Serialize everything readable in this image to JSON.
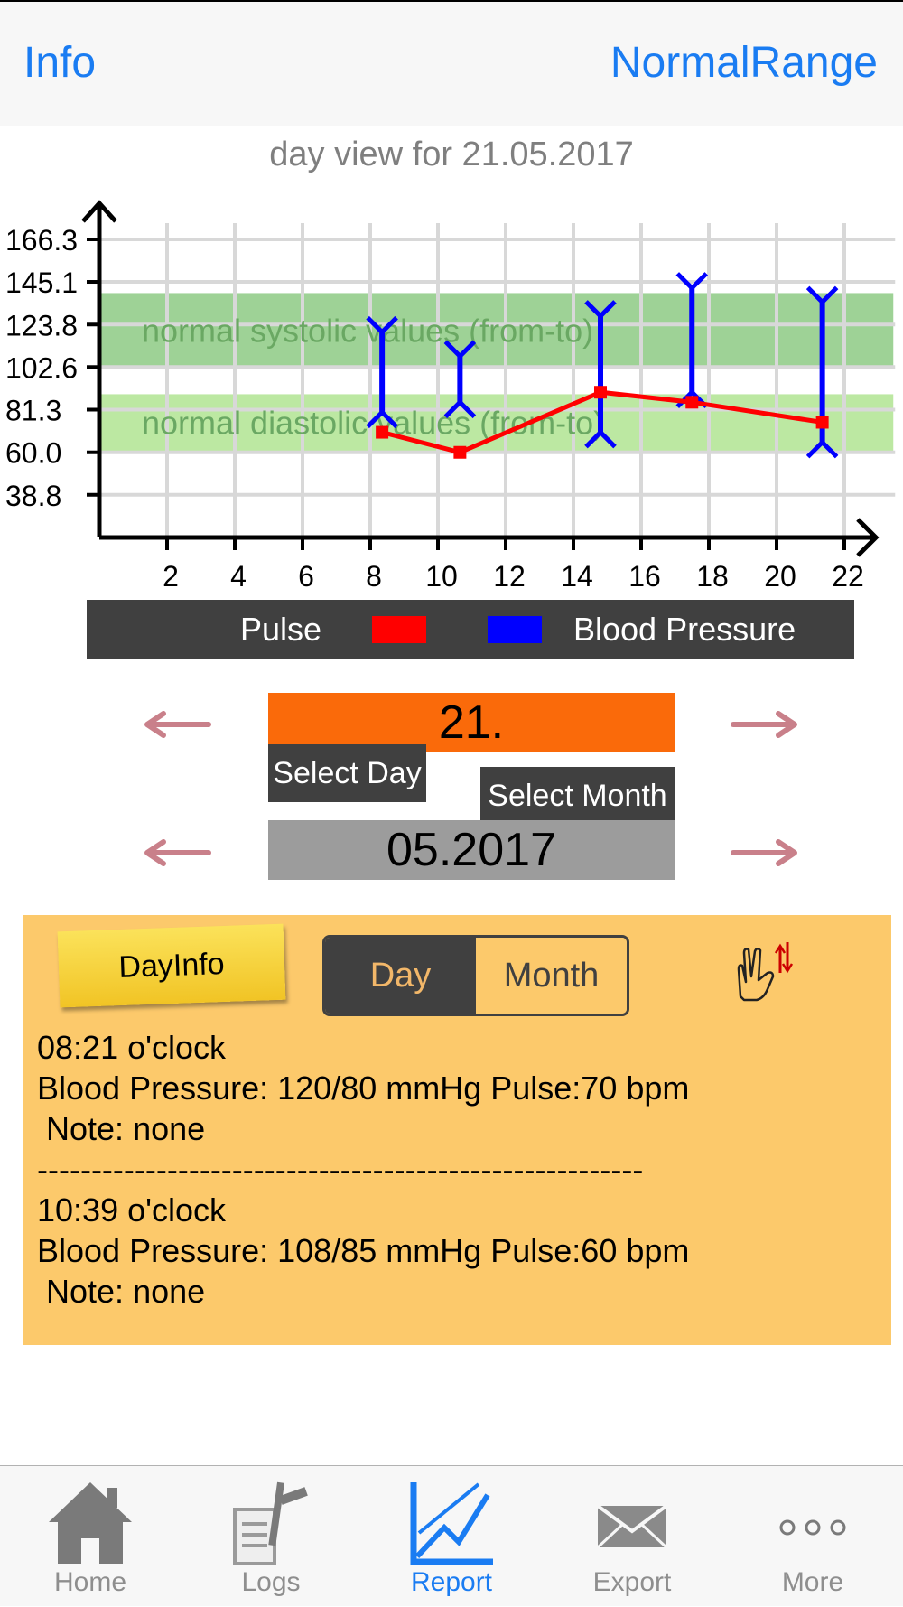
{
  "nav": {
    "left": "Info",
    "right": "NormalRange"
  },
  "chart_data": {
    "type": "line",
    "title": "day view for 21.05.2017",
    "x_ticks": [
      2,
      4,
      6,
      8,
      10,
      12,
      14,
      16,
      18,
      20,
      22
    ],
    "y_ticks": [
      "166.3",
      "145.1",
      "123.8",
      "102.6",
      "81.3",
      "60.0",
      "38.8"
    ],
    "y_tick_values": [
      166.3,
      145.1,
      123.8,
      102.6,
      81.3,
      60.0,
      38.8
    ],
    "xlim": [
      0,
      23.5
    ],
    "ylim": [
      17.5,
      176
    ],
    "grid": true,
    "bands": [
      {
        "label": "normal systolic values (from-to)",
        "from": 101.5,
        "to": 139.5,
        "color": "#9ed296"
      },
      {
        "label": "normal diastolic values (from-to)",
        "from": 60,
        "to": 89,
        "color": "#bce8a2"
      }
    ],
    "series": [
      {
        "name": "Pulse",
        "color": "#ff0000",
        "kind": "line",
        "points": [
          [
            8.35,
            70
          ],
          [
            10.65,
            60
          ],
          [
            14.8,
            90
          ],
          [
            17.5,
            85
          ],
          [
            21.35,
            75
          ]
        ]
      },
      {
        "name": "Blood Pressure",
        "color": "#0000ff",
        "kind": "range",
        "points": [
          [
            8.35,
            120,
            80
          ],
          [
            10.65,
            108,
            85
          ],
          [
            14.8,
            128,
            70
          ],
          [
            17.5,
            142,
            90
          ],
          [
            21.35,
            135,
            65
          ]
        ]
      }
    ]
  },
  "legend": {
    "pulse": "Pulse",
    "bp": "Blood Pressure",
    "pulse_color": "#ff0000",
    "bp_color": "#0000ff"
  },
  "selector": {
    "day_value": "21.",
    "month_value": "05.2017",
    "select_day": "Select Day",
    "select_month": "Select Month"
  },
  "dayinfo": {
    "sticky_label": "DayInfo",
    "segments": [
      "Day",
      "Month"
    ],
    "selected_segment": "Day",
    "text": "08:21 o'clock\nBlood Pressure: 120/80 mmHg Pulse:70 bpm\n Note: none\n--------------------------------------------------------\n10:39 o'clock\nBlood Pressure: 108/85 mmHg Pulse:60 bpm\n Note: none"
  },
  "tabs": [
    {
      "label": "Home",
      "icon": "home-icon",
      "active": false
    },
    {
      "label": "Logs",
      "icon": "logs-icon",
      "active": false
    },
    {
      "label": "Report",
      "icon": "report-icon",
      "active": true
    },
    {
      "label": "Export",
      "icon": "envelope-icon",
      "active": false
    },
    {
      "label": "More",
      "icon": "more-icon",
      "active": false
    }
  ],
  "colors": {
    "accent": "#1a7cf2",
    "orange": "#fa6a0a",
    "panel": "#fcc96b"
  }
}
